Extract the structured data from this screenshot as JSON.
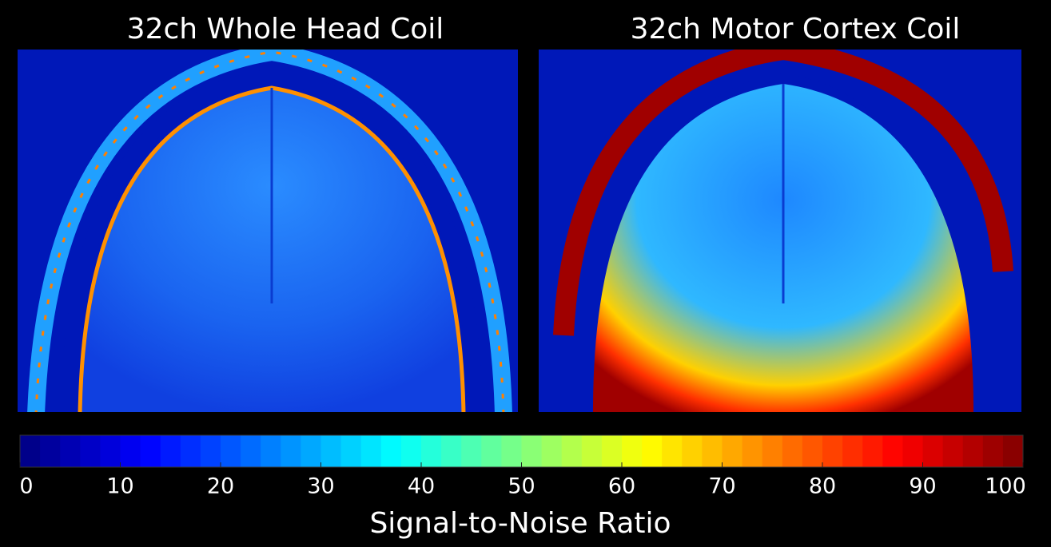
{
  "panels": [
    {
      "title": "32ch Whole Head Coil"
    },
    {
      "title": "32ch Motor Cortex Coil"
    }
  ],
  "colorbar": {
    "lim": [
      0,
      100
    ],
    "ticks": [
      0,
      10,
      20,
      30,
      40,
      50,
      60,
      70,
      80,
      90,
      100
    ],
    "label": "Signal-to-Noise Ratio"
  }
}
